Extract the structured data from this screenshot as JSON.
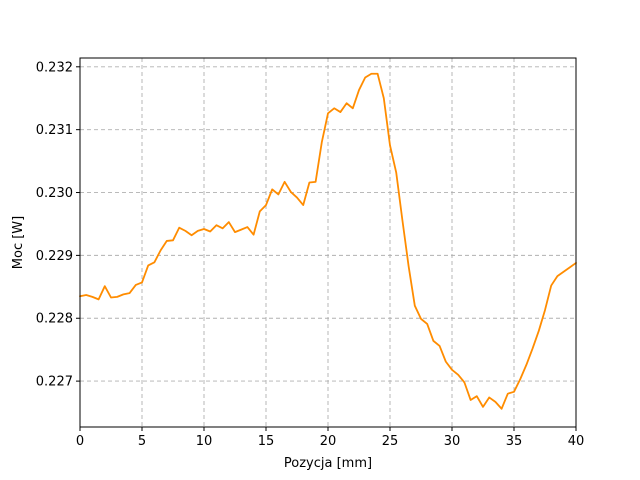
{
  "chart_data": {
    "type": "line",
    "title": "",
    "xlabel": "Pozycja [mm]",
    "ylabel": "Moc [W]",
    "xlim": [
      0,
      40
    ],
    "ylim": [
      0.22627,
      0.23214
    ],
    "xticks": [
      0,
      5,
      10,
      15,
      20,
      25,
      30,
      35,
      40
    ],
    "xtick_labels": [
      "0",
      "5",
      "10",
      "15",
      "20",
      "25",
      "30",
      "35",
      "40"
    ],
    "yticks": [
      0.227,
      0.228,
      0.229,
      0.23,
      0.231,
      0.232
    ],
    "ytick_labels": [
      "0.227",
      "0.228",
      "0.229",
      "0.230",
      "0.231",
      "0.232"
    ],
    "grid": true,
    "series": [
      {
        "color": "#ff8c00",
        "x": [
          0,
          0.5,
          1,
          1.5,
          2,
          2.5,
          3,
          3.5,
          4,
          4.5,
          5,
          5.5,
          6,
          6.5,
          7,
          7.5,
          8,
          8.5,
          9,
          9.5,
          10,
          10.5,
          11,
          11.5,
          12,
          12.5,
          13,
          13.5,
          14,
          14.5,
          15,
          15.5,
          16,
          16.5,
          17,
          17.5,
          18,
          18.5,
          19,
          19.5,
          20,
          20.5,
          21,
          21.5,
          22,
          22.5,
          23,
          23.5,
          24,
          24.5,
          25,
          25.5,
          26,
          26.5,
          27,
          27.5,
          28,
          28.5,
          29,
          29.5,
          30,
          30.5,
          31,
          31.5,
          32,
          32.5,
          33,
          33.5,
          34,
          34.5,
          35,
          35.5,
          36,
          36.5,
          37,
          37.5,
          38,
          38.5,
          39,
          39.5,
          40
        ],
        "y": [
          0.22835,
          0.22837,
          0.22834,
          0.2283,
          0.22851,
          0.22833,
          0.22834,
          0.22838,
          0.2284,
          0.22853,
          0.22857,
          0.22884,
          0.22889,
          0.22908,
          0.22923,
          0.22924,
          0.22944,
          0.22939,
          0.22932,
          0.22939,
          0.22942,
          0.22938,
          0.22948,
          0.22943,
          0.22953,
          0.22937,
          0.22941,
          0.22945,
          0.22933,
          0.2297,
          0.2298,
          0.23005,
          0.22997,
          0.23017,
          0.23001,
          0.22992,
          0.2298,
          0.23016,
          0.23017,
          0.2308,
          0.23126,
          0.23134,
          0.23128,
          0.23142,
          0.23134,
          0.23163,
          0.23183,
          0.23189,
          0.23189,
          0.2315,
          0.23075,
          0.23032,
          0.22956,
          0.22883,
          0.2282,
          0.22799,
          0.22791,
          0.22764,
          0.22756,
          0.22731,
          0.22718,
          0.2271,
          0.22698,
          0.2267,
          0.22676,
          0.22659,
          0.22674,
          0.22667,
          0.22656,
          0.2268,
          0.22683,
          0.22703,
          0.22726,
          0.22752,
          0.2278,
          0.22813,
          0.22852,
          0.22867,
          0.22874,
          0.22881,
          0.22888
        ]
      }
    ]
  }
}
